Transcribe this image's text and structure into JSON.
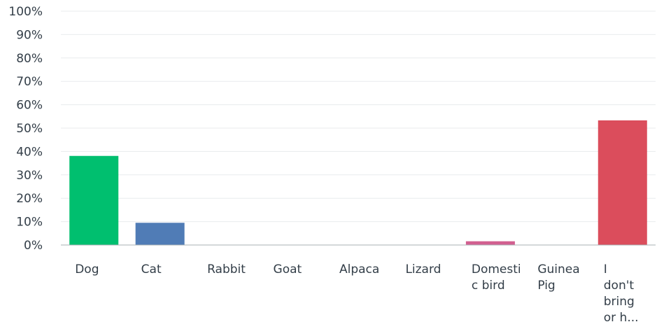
{
  "chart_data": {
    "type": "bar",
    "title": "",
    "xlabel": "",
    "ylabel": "",
    "ylim": [
      0,
      100
    ],
    "y_ticks": [
      "0%",
      "10%",
      "20%",
      "30%",
      "40%",
      "50%",
      "60%",
      "70%",
      "80%",
      "90%",
      "100%"
    ],
    "grid": true,
    "categories": [
      [
        "Dog"
      ],
      [
        "Cat"
      ],
      [
        "Rabbit"
      ],
      [
        "Goat"
      ],
      [
        "Alpaca"
      ],
      [
        "Lizard"
      ],
      [
        "Domesti",
        "c bird"
      ],
      [
        "Guinea",
        "Pig"
      ],
      [
        "I",
        "don't",
        "bring",
        "or h..."
      ]
    ],
    "values": [
      38.1,
      9.5,
      0,
      0,
      0,
      0,
      1.6,
      0,
      53.3
    ],
    "colors": [
      "#00bf6f",
      "#507cb6",
      "#6bc8cd",
      "#f9be00",
      "#768086",
      "#9d5ba9",
      "#d25f90",
      "#dbcd00",
      "#db4d5c"
    ]
  }
}
